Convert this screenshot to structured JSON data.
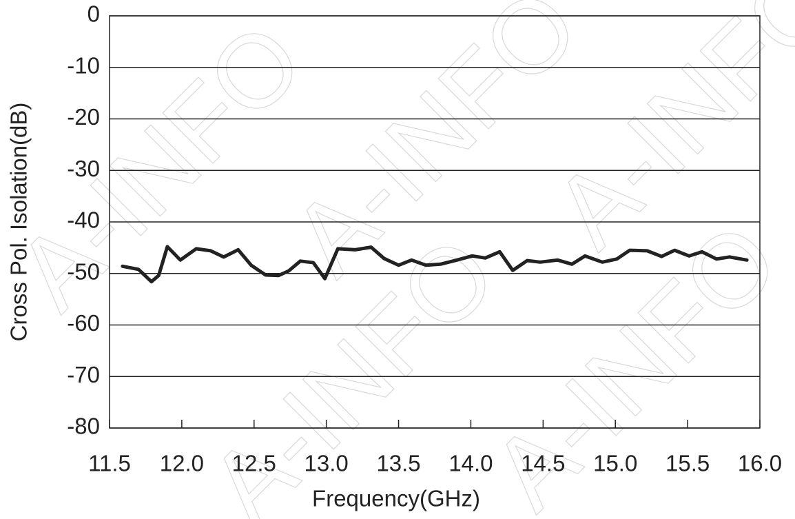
{
  "chart_data": {
    "type": "line",
    "watermark": "A-INFO",
    "x_label": "Frequency(GHz)",
    "y_label": "Cross Pol. Isolation(dB)",
    "xlim": [
      11.5,
      16.0
    ],
    "xticks": [
      11.5,
      {
        "value": 12.0,
        "label": "12.0"
      },
      12.5,
      {
        "value": 13.0,
        "label": "13.0"
      },
      13.5,
      {
        "value": 14.0,
        "label": "14.0"
      },
      14.5,
      {
        "value": 15.0,
        "label": "15.0"
      },
      15.5,
      {
        "value": 16.0,
        "label": "16.0"
      }
    ],
    "ylim": [
      -80,
      0
    ],
    "yticks": [
      0,
      -10,
      -20,
      -30,
      -40,
      -50,
      -60,
      -70,
      -80
    ],
    "grid": true,
    "x": [
      11.59,
      11.7,
      11.79,
      11.84,
      11.9,
      11.99,
      12.1,
      12.2,
      12.29,
      12.39,
      12.48,
      12.58,
      12.67,
      12.74,
      12.82,
      12.91,
      12.99,
      13.08,
      13.2,
      13.31,
      13.4,
      13.5,
      13.59,
      13.69,
      13.79,
      13.89,
      14.01,
      14.1,
      14.2,
      14.29,
      14.39,
      14.48,
      14.6,
      14.7,
      14.79,
      14.91,
      15.01,
      15.1,
      15.22,
      15.32,
      15.41,
      15.51,
      15.6,
      15.7,
      15.79,
      15.91
    ],
    "series": [
      {
        "color": "#222222",
        "values": [
          -48.6,
          -49.2,
          -51.6,
          -50.4,
          -44.8,
          -47.4,
          -45.2,
          -45.6,
          -46.8,
          -45.4,
          -48.4,
          -50.3,
          -50.4,
          -49.5,
          -47.6,
          -47.9,
          -51.0,
          -45.2,
          -45.4,
          -44.9,
          -47.1,
          -48.4,
          -47.4,
          -48.4,
          -48.2,
          -47.5,
          -46.6,
          -47.0,
          -45.8,
          -49.4,
          -47.5,
          -47.8,
          -47.4,
          -48.2,
          -46.6,
          -47.8,
          -47.2,
          -45.5,
          -45.6,
          -46.7,
          -45.5,
          -46.6,
          -45.8,
          -47.2,
          -46.8,
          -47.4
        ]
      }
    ]
  }
}
